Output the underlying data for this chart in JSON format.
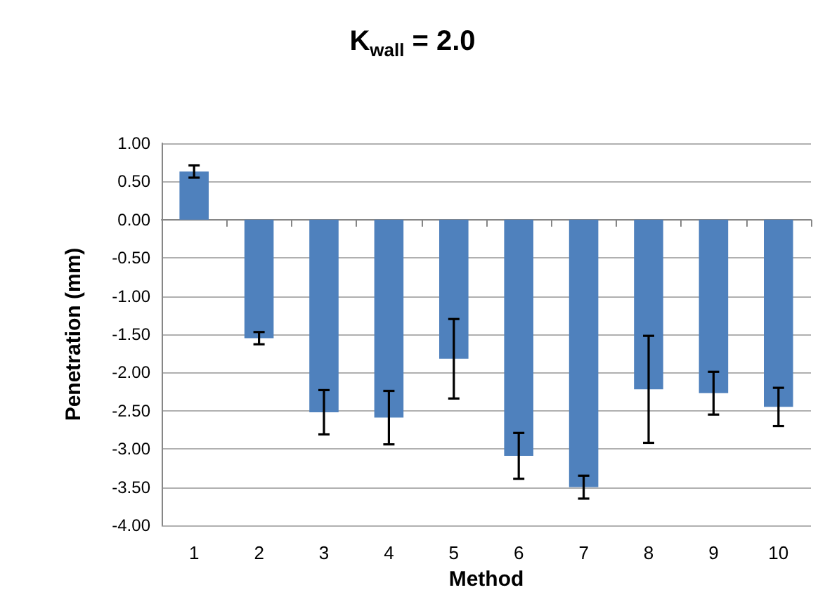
{
  "chart_data": {
    "type": "bar",
    "title": "K$_{wall}$ = 2.0",
    "xlabel": "Method",
    "ylabel": "Penetration (mm)",
    "categories": [
      "1",
      "2",
      "3",
      "4",
      "5",
      "6",
      "7",
      "8",
      "9",
      "10"
    ],
    "values": [
      0.63,
      -1.55,
      -2.52,
      -2.59,
      -1.82,
      -3.09,
      -3.5,
      -2.22,
      -2.27,
      -2.45
    ],
    "errors": [
      0.08,
      0.08,
      0.29,
      0.35,
      0.52,
      0.3,
      0.15,
      0.7,
      0.28,
      0.25
    ],
    "color": "#4f81bd",
    "ylim": [
      -4,
      1
    ],
    "yticks": [
      {
        "value": -4,
        "label": "-4.00"
      },
      {
        "value": -3.5,
        "label": "-3.50"
      },
      {
        "value": -3,
        "label": "-3.00"
      },
      {
        "value": -2.5,
        "label": "-2.50"
      },
      {
        "value": -2,
        "label": "-2.00"
      },
      {
        "value": -1.5,
        "label": "-1.50"
      },
      {
        "value": -1,
        "label": "-1.00"
      },
      {
        "value": -0.5,
        "label": "-0.50"
      },
      {
        "value": 0,
        "label": "0.00"
      },
      {
        "value": 0.5,
        "label": "0.50"
      },
      {
        "value": 1,
        "label": "1.00"
      }
    ],
    "grid": "y"
  }
}
